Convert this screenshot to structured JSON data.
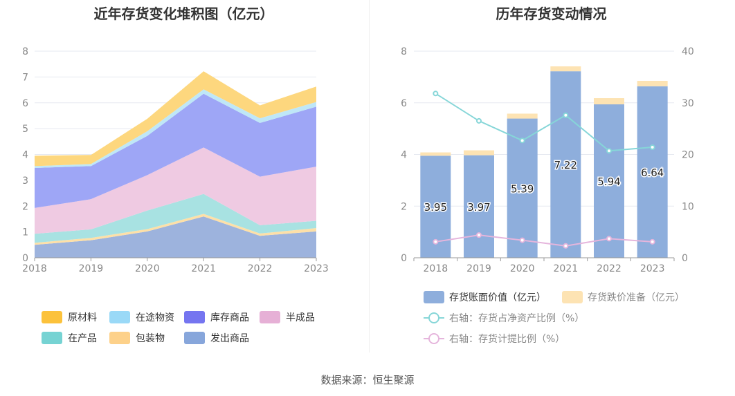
{
  "left_chart": {
    "title": "近年存货变化堆积图（亿元）"
  },
  "right_chart": {
    "title": "历年存货变动情况"
  },
  "source": "数据来源：恒生聚源",
  "chart_data": [
    {
      "type": "area",
      "stacked": true,
      "title": "近年存货变化堆积图（亿元）",
      "x": [
        "2018",
        "2019",
        "2020",
        "2021",
        "2022",
        "2023"
      ],
      "ylim": [
        0,
        8
      ],
      "yticks": [
        0,
        1,
        2,
        3,
        4,
        5,
        6,
        7,
        8
      ],
      "grid": true,
      "legend_position": "bottom",
      "series": [
        {
          "name": "发出商品",
          "color": "#9db3dd",
          "values": [
            0.5,
            0.68,
            1.02,
            1.6,
            0.85,
            1.02
          ]
        },
        {
          "name": "包装物",
          "color": "#fde0a8",
          "values": [
            0.08,
            0.09,
            0.09,
            0.1,
            0.09,
            0.13
          ]
        },
        {
          "name": "在产品",
          "color": "#a8e2e2",
          "values": [
            0.35,
            0.33,
            0.72,
            0.77,
            0.32,
            0.28
          ]
        },
        {
          "name": "半成品",
          "color": "#efcae2",
          "values": [
            1.0,
            1.17,
            1.37,
            1.8,
            1.88,
            2.1
          ]
        },
        {
          "name": "库存商品",
          "color": "#9ea6f6",
          "values": [
            1.55,
            1.28,
            1.52,
            2.08,
            2.08,
            2.32
          ]
        },
        {
          "name": "在途物资",
          "color": "#bfe7f7",
          "values": [
            0.07,
            0.08,
            0.18,
            0.17,
            0.18,
            0.18
          ]
        },
        {
          "name": "原材料",
          "color": "#fdd77e",
          "values": [
            0.4,
            0.35,
            0.48,
            0.7,
            0.5,
            0.6
          ]
        }
      ],
      "legend_order": [
        "原材料",
        "在途物资",
        "库存商品",
        "半成品",
        "在产品",
        "包装物",
        "发出商品"
      ],
      "legend_colors": {
        "原材料": "#fcc23b",
        "在途物资": "#9ad9f7",
        "库存商品": "#7575f0",
        "半成品": "#e6b0d6",
        "在产品": "#76d3d3",
        "包装物": "#fdd18a",
        "发出商品": "#87a6db"
      }
    },
    {
      "type": "bar",
      "stacked": true,
      "title": "历年存货变动情况",
      "categories": [
        "2018",
        "2019",
        "2020",
        "2021",
        "2022",
        "2023"
      ],
      "ylim": [
        0,
        8
      ],
      "yticks": [
        0,
        2,
        4,
        6,
        8
      ],
      "y2lim": [
        0,
        40
      ],
      "y2ticks": [
        0,
        10,
        20,
        30,
        40
      ],
      "grid": true,
      "legend_position": "bottom",
      "bar_series": [
        {
          "name": "存货账面价值（亿元）",
          "color": "#8eaedc",
          "values": [
            3.95,
            3.97,
            5.39,
            7.22,
            5.94,
            6.64
          ],
          "labels": [
            "3.95",
            "3.97",
            "5.39",
            "7.22",
            "5.94",
            "6.64"
          ]
        },
        {
          "name": "存货跌价准备（亿元）",
          "color": "#fde3b3",
          "values": [
            0.13,
            0.19,
            0.19,
            0.19,
            0.24,
            0.21
          ]
        }
      ],
      "line_series": [
        {
          "name": "右轴：存货占净资产比例（%）",
          "color": "#86d6d8",
          "axis": "right",
          "values": [
            31.8,
            26.5,
            22.7,
            27.6,
            20.7,
            21.4
          ]
        },
        {
          "name": "右轴：存货计提比例（%）",
          "color": "#e5b5dc",
          "axis": "right",
          "values": [
            3.1,
            4.4,
            3.4,
            2.3,
            3.7,
            3.1
          ]
        }
      ]
    }
  ]
}
